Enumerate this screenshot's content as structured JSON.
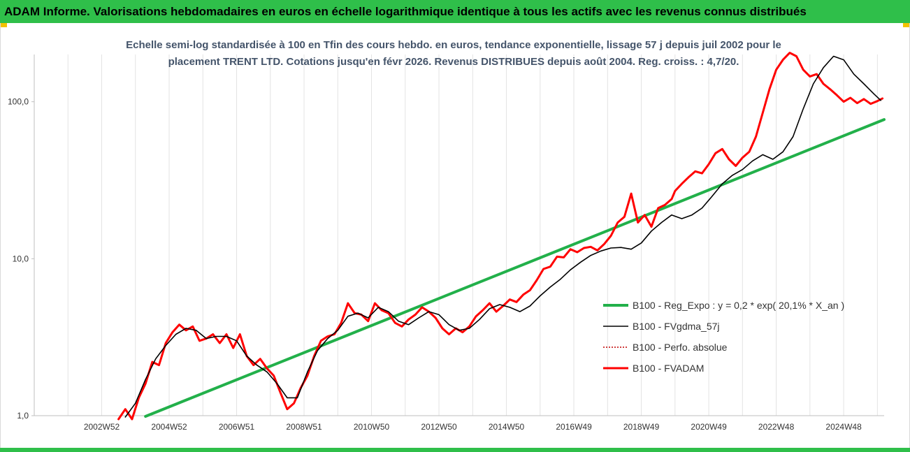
{
  "banner": {
    "title": "ADAM Informe. Valorisations hebdomadaires en euros en échelle logarithmique identique à tous les actifs avec les revenus connus distribués"
  },
  "colors": {
    "banner_bg": "#2fbf4a",
    "regression": "#22b04a",
    "fvgdma": "#000000",
    "perfo": "#c00000",
    "fvadam": "#ff0000",
    "subtitle": "#44546a"
  },
  "chart_data": {
    "type": "line",
    "subtitle_line1": "Echelle semi-log standardisée à 100 en Tfin des cours hebdo. en euros, tendance exponentielle, lissage 57 j depuis juil 2002 pour le",
    "subtitle_line2": "placement TRENT LTD. Cotations jusqu'en févr 2026. Revenus DISTRIBUES depuis août 2004. Reg. croiss. : 4,7/20.",
    "y_scale": "log",
    "ylim": [
      1,
      200
    ],
    "y_ticks": [
      {
        "value": 1,
        "label": "1,0"
      },
      {
        "value": 10,
        "label": "10,0"
      },
      {
        "value": 100,
        "label": "100,0"
      }
    ],
    "xlim": [
      2001.0,
      2026.2
    ],
    "x_ticks": [
      {
        "value": 2003.0,
        "label": "2002W52"
      },
      {
        "value": 2005.0,
        "label": "2004W52"
      },
      {
        "value": 2007.0,
        "label": "2006W51"
      },
      {
        "value": 2009.0,
        "label": "2008W51"
      },
      {
        "value": 2011.0,
        "label": "2010W50"
      },
      {
        "value": 2013.0,
        "label": "2012W50"
      },
      {
        "value": 2015.0,
        "label": "2014W50"
      },
      {
        "value": 2017.0,
        "label": "2016W49"
      },
      {
        "value": 2019.0,
        "label": "2018W49"
      },
      {
        "value": 2021.0,
        "label": "2020W49"
      },
      {
        "value": 2023.0,
        "label": "2022W48"
      },
      {
        "value": 2025.0,
        "label": "2024W48"
      }
    ],
    "grid": "vertical",
    "legend_position": "right",
    "series": [
      {
        "name": "B100 - Reg_Expo : y = 0,2 * exp( 20,1% *  X_an )",
        "style": "line",
        "x": [
          2004.3,
          2026.2
        ],
        "y": [
          0.99,
          77
        ]
      },
      {
        "name": "B100 - FVgdma_57j",
        "style": "line",
        "x": [
          2003.7,
          2004.0,
          2004.3,
          2004.6,
          2004.9,
          2005.2,
          2005.5,
          2005.8,
          2006.1,
          2006.4,
          2006.7,
          2007.0,
          2007.3,
          2007.6,
          2007.9,
          2008.2,
          2008.5,
          2008.8,
          2009.1,
          2009.4,
          2009.7,
          2010.0,
          2010.3,
          2010.6,
          2010.9,
          2011.2,
          2011.5,
          2011.8,
          2012.1,
          2012.4,
          2012.7,
          2013.0,
          2013.3,
          2013.6,
          2013.9,
          2014.2,
          2014.5,
          2014.8,
          2015.1,
          2015.4,
          2015.7,
          2016.0,
          2016.3,
          2016.6,
          2016.9,
          2017.2,
          2017.5,
          2017.8,
          2018.1,
          2018.4,
          2018.7,
          2019.0,
          2019.3,
          2019.6,
          2019.9,
          2020.2,
          2020.5,
          2020.8,
          2021.1,
          2021.4,
          2021.7,
          2022.0,
          2022.3,
          2022.6,
          2022.9,
          2023.2,
          2023.5,
          2023.8,
          2024.1,
          2024.4,
          2024.7,
          2025.0,
          2025.3,
          2025.6,
          2025.9,
          2026.1
        ],
        "y": [
          0.98,
          1.2,
          1.7,
          2.3,
          2.8,
          3.3,
          3.6,
          3.5,
          3.1,
          3.2,
          3.2,
          3.0,
          2.4,
          2.1,
          1.9,
          1.6,
          1.3,
          1.3,
          1.9,
          2.6,
          3.1,
          3.5,
          4.3,
          4.5,
          4.2,
          4.9,
          4.6,
          4.0,
          3.8,
          4.2,
          4.6,
          4.4,
          3.8,
          3.5,
          3.6,
          4.1,
          4.8,
          5.1,
          4.9,
          4.6,
          5.0,
          5.8,
          6.6,
          7.4,
          8.5,
          9.5,
          10.5,
          11.2,
          11.7,
          11.8,
          11.5,
          12.6,
          15.0,
          17.0,
          19.0,
          18.0,
          19.0,
          21.0,
          25.0,
          30.0,
          34.0,
          37.0,
          42.0,
          46.0,
          43.0,
          48.0,
          60.0,
          90.0,
          130.0,
          165.0,
          195.0,
          185.0,
          150.0,
          130.0,
          112.0,
          102.0
        ]
      },
      {
        "name": "B100 - Perfo. absolue",
        "style": "dotted",
        "x": [],
        "y": []
      },
      {
        "name": "B100 - FVADAM",
        "style": "line",
        "x": [
          2003.5,
          2003.7,
          2003.9,
          2004.1,
          2004.3,
          2004.5,
          2004.7,
          2004.9,
          2005.1,
          2005.3,
          2005.5,
          2005.7,
          2005.9,
          2006.1,
          2006.3,
          2006.5,
          2006.7,
          2006.9,
          2007.1,
          2007.3,
          2007.5,
          2007.7,
          2007.9,
          2008.1,
          2008.3,
          2008.5,
          2008.7,
          2008.9,
          2009.1,
          2009.3,
          2009.5,
          2009.7,
          2009.9,
          2010.1,
          2010.3,
          2010.5,
          2010.7,
          2010.9,
          2011.1,
          2011.3,
          2011.5,
          2011.7,
          2011.9,
          2012.1,
          2012.3,
          2012.5,
          2012.7,
          2012.9,
          2013.1,
          2013.3,
          2013.5,
          2013.7,
          2013.9,
          2014.1,
          2014.3,
          2014.5,
          2014.7,
          2014.9,
          2015.1,
          2015.3,
          2015.5,
          2015.7,
          2015.9,
          2016.1,
          2016.3,
          2016.5,
          2016.7,
          2016.9,
          2017.1,
          2017.3,
          2017.5,
          2017.7,
          2017.9,
          2018.1,
          2018.3,
          2018.5,
          2018.7,
          2018.9,
          2019.1,
          2019.3,
          2019.5,
          2019.7,
          2019.9,
          2020.0,
          2020.2,
          2020.4,
          2020.6,
          2020.8,
          2021.0,
          2021.2,
          2021.4,
          2021.6,
          2021.8,
          2022.0,
          2022.2,
          2022.4,
          2022.6,
          2022.8,
          2023.0,
          2023.2,
          2023.4,
          2023.6,
          2023.8,
          2024.0,
          2024.2,
          2024.4,
          2024.6,
          2024.8,
          2025.0,
          2025.2,
          2025.4,
          2025.6,
          2025.8,
          2026.0,
          2026.15
        ],
        "y": [
          0.95,
          1.1,
          0.95,
          1.3,
          1.6,
          2.2,
          2.1,
          2.9,
          3.4,
          3.8,
          3.5,
          3.7,
          3.0,
          3.1,
          3.3,
          2.9,
          3.3,
          2.7,
          3.3,
          2.4,
          2.1,
          2.3,
          2.0,
          1.8,
          1.4,
          1.1,
          1.2,
          1.5,
          1.8,
          2.4,
          3.0,
          3.2,
          3.3,
          3.9,
          5.2,
          4.5,
          4.4,
          4.0,
          5.2,
          4.7,
          4.5,
          3.9,
          3.7,
          4.1,
          4.4,
          4.9,
          4.6,
          4.2,
          3.6,
          3.3,
          3.6,
          3.4,
          3.7,
          4.3,
          4.7,
          5.2,
          4.6,
          5.0,
          5.5,
          5.3,
          5.9,
          6.3,
          7.3,
          8.6,
          8.9,
          10.3,
          10.2,
          11.5,
          11.0,
          11.7,
          11.9,
          11.3,
          12.4,
          14.0,
          17.0,
          18.5,
          26.0,
          17.0,
          19.0,
          16.0,
          21.0,
          22.0,
          24.0,
          27.0,
          30.0,
          33.0,
          36.0,
          35.0,
          40.0,
          47.0,
          50.0,
          43.0,
          39.0,
          44.0,
          48.0,
          60.0,
          85.0,
          120.0,
          160.0,
          185.0,
          205.0,
          195.0,
          160.0,
          145.0,
          150.0,
          130.0,
          120.0,
          110.0,
          100.0,
          106.0,
          98.0,
          104.0,
          97.0,
          101.0,
          105.0
        ]
      }
    ]
  }
}
